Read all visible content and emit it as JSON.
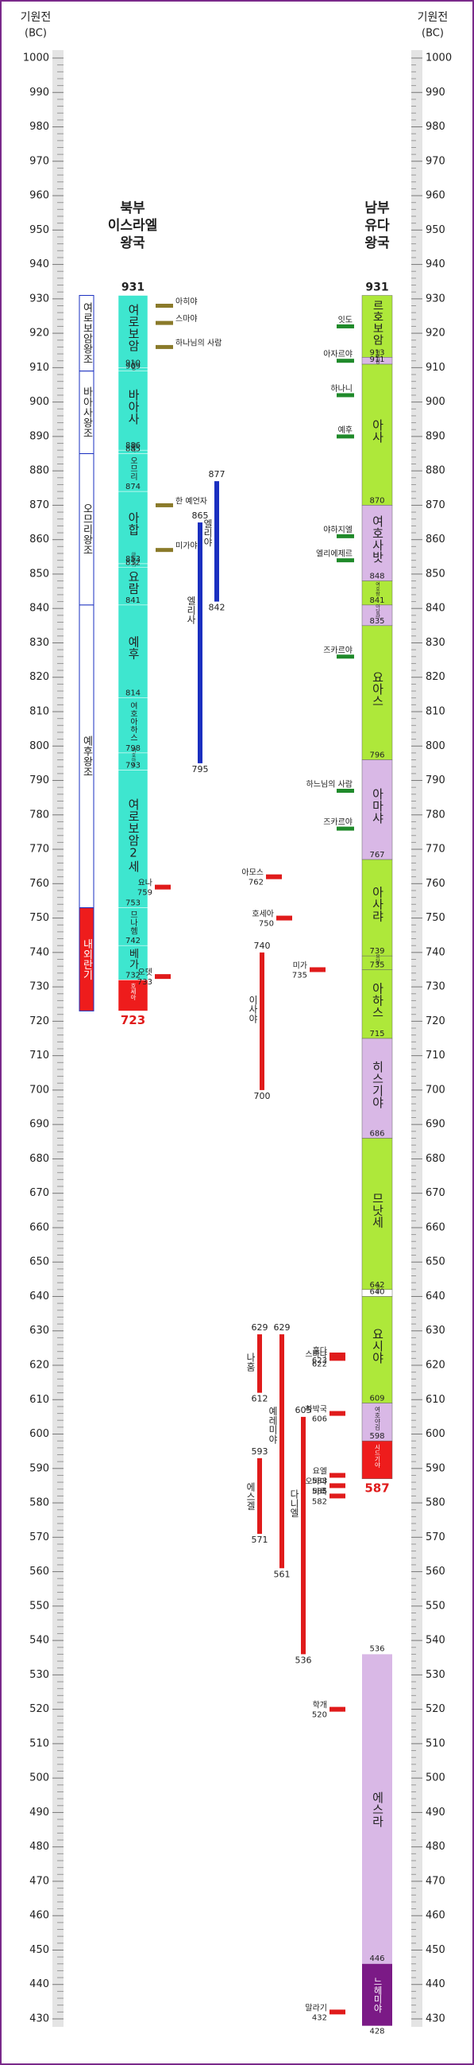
{
  "header": {
    "left_title": "기원전",
    "left_unit": "(BC)",
    "right_title": "기원전",
    "right_unit": "(BC)"
  },
  "ticks": [
    1000,
    990,
    980,
    970,
    960,
    950,
    940,
    930,
    920,
    910,
    900,
    890,
    880,
    870,
    860,
    850,
    840,
    830,
    820,
    810,
    800,
    790,
    780,
    770,
    760,
    750,
    740,
    730,
    720,
    710,
    700,
    690,
    680,
    670,
    660,
    650,
    640,
    630,
    620,
    610,
    600,
    590,
    580,
    570,
    560,
    550,
    540,
    530,
    520,
    510,
    500,
    490,
    480,
    470,
    460,
    450,
    440,
    430
  ],
  "north": {
    "title": [
      "북부",
      "이스라엘",
      "왕국"
    ],
    "start": 931,
    "color": "#3ee6cf",
    "kings": [
      {
        "name": "여로보암",
        "to": 910
      },
      {
        "name": "나답",
        "to": 909
      },
      {
        "name": "바아사",
        "to": 886
      },
      {
        "name": "엘라",
        "to": 885
      },
      {
        "name": "오므리",
        "to": 874
      },
      {
        "name": "아합",
        "to": 853
      },
      {
        "name": "아하시야",
        "to": 852
      },
      {
        "name": "요람",
        "to": 841
      },
      {
        "name": "예후",
        "to": 814
      },
      {
        "name": "여호아하스",
        "to": 798
      },
      {
        "name": "여호아스",
        "to": 793
      },
      {
        "name": "여로보암2세",
        "to": 753
      },
      {
        "name": "므나헴",
        "to": 742
      },
      {
        "name": "베가",
        "to": 732
      },
      {
        "name": "호세아",
        "to": 723
      }
    ],
    "periods": [
      "여로보암왕조",
      "바아사왕조",
      "오므리왕조",
      "예후왕조",
      "내외란기"
    ]
  },
  "south": {
    "title": [
      "남부",
      "유다",
      "왕국"
    ],
    "start": 931,
    "kings": [
      {
        "name": "르호보암",
        "to": 913,
        "color": "#aee83a"
      },
      {
        "name": "아비얌",
        "to": 911,
        "color": "#d9b8e6"
      },
      {
        "name": "아사",
        "to": 870,
        "color": "#aee83a"
      },
      {
        "name": "여호사밧",
        "to": 848,
        "color": "#d9b8e6"
      },
      {
        "name": "여호람",
        "to": 841,
        "color": "#aee83a"
      },
      {
        "name": "아달랴",
        "to": 835,
        "color": "#d9b8e6"
      },
      {
        "name": "요아스",
        "to": 796,
        "color": "#aee83a"
      },
      {
        "name": "아마샤",
        "to": 767,
        "color": "#d9b8e6"
      },
      {
        "name": "아사랴",
        "to": 739,
        "color": "#aee83a"
      },
      {
        "name": "요담",
        "to": 735,
        "color": "#aee83a"
      },
      {
        "name": "아하스",
        "to": 715,
        "color": "#aee83a"
      },
      {
        "name": "히스기야",
        "to": 686,
        "color": "#d9b8e6"
      },
      {
        "name": "므낫세",
        "to": 642,
        "color": "#aee83a"
      },
      {
        "name": "아몬",
        "to": 640,
        "color": "#ffffff"
      },
      {
        "name": "요시야",
        "to": 609,
        "color": "#aee83a"
      },
      {
        "name": "여호야김",
        "to": 598,
        "color": "#d9b8e6"
      },
      {
        "name": "시드기야",
        "to": 587,
        "color": "#ee1c1c"
      }
    ],
    "later": [
      {
        "name": "에스라",
        "from": 536,
        "to": 446,
        "color": "#d9b8e6"
      },
      {
        "name": "느헤미야",
        "from": 446,
        "to": 428,
        "color": "#7b1a86"
      }
    ]
  },
  "prophet_bars": [
    {
      "name": "엘리야",
      "from": 877,
      "to": 842,
      "color": "#1a2fc0"
    },
    {
      "name": "엘리사",
      "from": 865,
      "to": 795,
      "color": "#1a2fc0"
    },
    {
      "name": "이사야",
      "from": 740,
      "to": 700,
      "color": "#e01b1b"
    },
    {
      "name": "나훔",
      "from": 629,
      "to": 612,
      "color": "#e01b1b"
    },
    {
      "name": "예레미야",
      "from": 629,
      "to": 561,
      "color": "#e01b1b"
    },
    {
      "name": "에스겔",
      "from": 593,
      "to": 571,
      "color": "#e01b1b"
    },
    {
      "name": "다니엘",
      "from": 605,
      "to": 536,
      "color": "#e01b1b"
    }
  ],
  "dated_prophets": [
    {
      "name": "요나",
      "year": 759,
      "color": "#e01b1b"
    },
    {
      "name": "오뎃",
      "year": 733,
      "color": "#e01b1b"
    },
    {
      "name": "아모스",
      "year": 762,
      "color": "#e01b1b"
    },
    {
      "name": "호세아",
      "year": 750,
      "color": "#e01b1b"
    },
    {
      "name": "미가",
      "year": 735,
      "color": "#e01b1b"
    },
    {
      "name": "훌다",
      "year": 623,
      "color": "#e01b1b"
    },
    {
      "name": "스바냐",
      "year": 622,
      "color": "#e01b1b"
    },
    {
      "name": "하박국",
      "year": 606,
      "color": "#e01b1b"
    },
    {
      "name": "요엘",
      "year": 588,
      "color": "#e01b1b"
    },
    {
      "name": "오바댜",
      "year": 585,
      "color": "#e01b1b"
    },
    {
      "name": "바룩",
      "year": 582,
      "color": "#e01b1b"
    },
    {
      "name": "학개",
      "year": 520,
      "color": "#e01b1b"
    },
    {
      "name": "말라기",
      "year": 432,
      "color": "#e01b1b"
    }
  ],
  "north_prophets": [
    {
      "name": "아히야",
      "year": 928,
      "color": "#8a7a2a"
    },
    {
      "name": "스마야",
      "year": 923,
      "color": "#8a7a2a"
    },
    {
      "name": "하나님의 사람",
      "year": 916,
      "color": "#8a7a2a"
    },
    {
      "name": "한 예언자",
      "year": 870,
      "color": "#8a7a2a"
    },
    {
      "name": "미가야",
      "year": 857,
      "color": "#8a7a2a"
    }
  ],
  "south_prophets": [
    {
      "name": "잇도",
      "year": 922,
      "color": "#1f8a2a"
    },
    {
      "name": "아자르야",
      "year": 912,
      "color": "#1f8a2a"
    },
    {
      "name": "하나니",
      "year": 902,
      "color": "#1f8a2a"
    },
    {
      "name": "예후",
      "year": 890,
      "color": "#1f8a2a"
    },
    {
      "name": "야하지엘",
      "year": 861,
      "color": "#1f8a2a"
    },
    {
      "name": "엘리에제르",
      "year": 854,
      "color": "#1f8a2a"
    },
    {
      "name": "즈카르야",
      "year": 826,
      "color": "#1f8a2a"
    },
    {
      "name": "하느님의 사람",
      "year": 787,
      "color": "#1f8a2a"
    },
    {
      "name": "즈카르야",
      "year": 776,
      "color": "#1f8a2a"
    }
  ]
}
